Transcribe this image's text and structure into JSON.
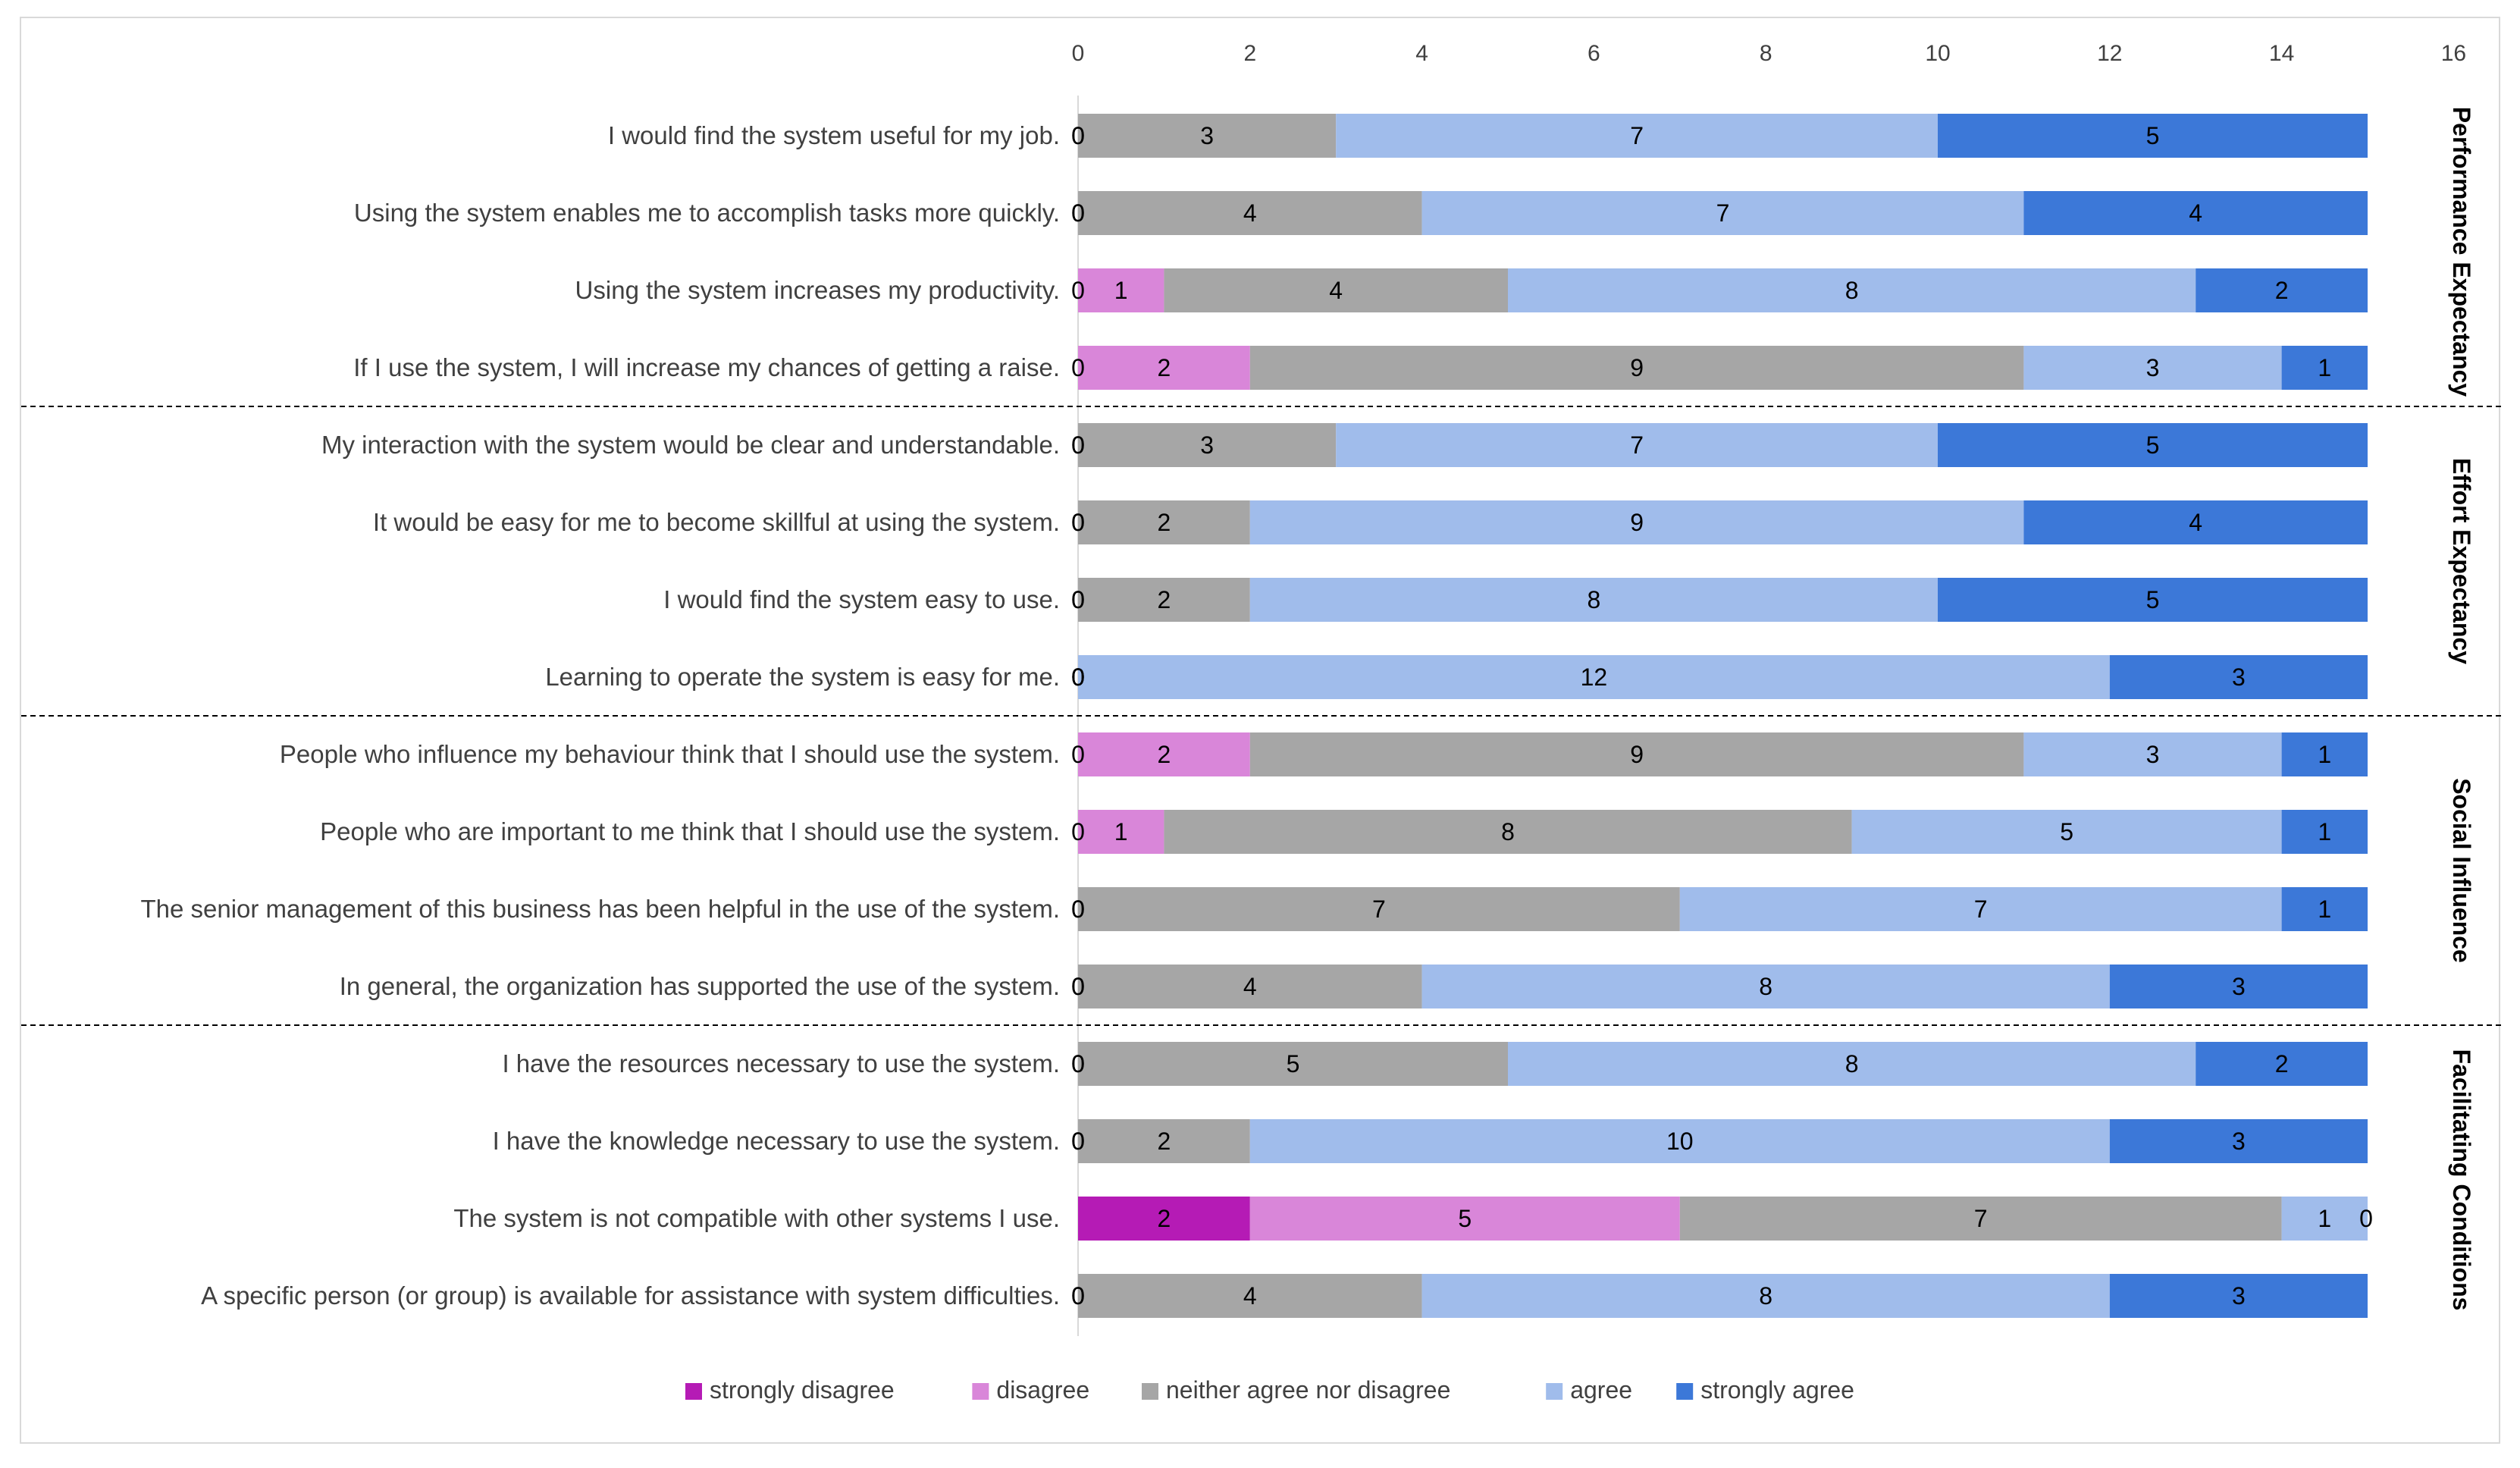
{
  "chart_data": {
    "type": "bar",
    "orientation": "horizontal",
    "stacked": true,
    "title": "",
    "xlabel": "",
    "ylabel": "",
    "xlim": [
      0,
      16
    ],
    "x_ticks": [
      0,
      2,
      4,
      6,
      8,
      10,
      12,
      14,
      16
    ],
    "legend_position": "bottom",
    "grid": false,
    "categories": [
      "I would find the system useful for my job.",
      "Using the system enables me to accomplish tasks more quickly.",
      "Using the system increases my productivity.",
      "If I use the system, I will increase my chances of getting a raise.",
      "My interaction with the system would be clear and understandable.",
      "It would be easy for me to become skillful at using the system.",
      "I would find the system easy to use.",
      "Learning to operate the system is easy for me.",
      "People who influence my behaviour think that I should use the system.",
      "People who are important to me think that I should use the system.",
      "The senior management of this business has been helpful in the use of the system.",
      "In general, the organization has supported the use of the system.",
      "I have the resources necessary to use the system.",
      "I have the knowledge necessary to use the system.",
      "The system is not compatible with other systems I use.",
      "A specific person (or group) is available for assistance with system difficulties."
    ],
    "series": [
      {
        "name": "strongly disagree",
        "color": "#B51BB5",
        "values": [
          0,
          0,
          0,
          0,
          0,
          0,
          0,
          0,
          0,
          0,
          0,
          0,
          0,
          0,
          2,
          0
        ]
      },
      {
        "name": "disagree",
        "color": "#D986D9",
        "values": [
          0,
          0,
          1,
          2,
          0,
          0,
          0,
          0,
          2,
          1,
          0,
          0,
          0,
          0,
          5,
          0
        ]
      },
      {
        "name": "neither agree nor disagree",
        "color": "#A6A6A6",
        "values": [
          3,
          4,
          4,
          9,
          3,
          2,
          2,
          0,
          9,
          8,
          7,
          4,
          5,
          2,
          7,
          4
        ]
      },
      {
        "name": "agree",
        "color": "#A0BCEB",
        "values": [
          7,
          7,
          8,
          3,
          7,
          9,
          8,
          12,
          3,
          5,
          7,
          8,
          8,
          10,
          1,
          8
        ]
      },
      {
        "name": "strongly agree",
        "color": "#3C78D8",
        "values": [
          5,
          4,
          2,
          1,
          5,
          4,
          5,
          3,
          1,
          1,
          1,
          3,
          2,
          3,
          0,
          3
        ]
      }
    ],
    "groups": [
      {
        "name": "Performance Expectancy",
        "start": 0,
        "end": 3
      },
      {
        "name": "Effort Expectancy",
        "start": 4,
        "end": 7
      },
      {
        "name": "Social Influence",
        "start": 8,
        "end": 11
      },
      {
        "name": "Facilitating Conditions",
        "start": 12,
        "end": 15
      }
    ]
  }
}
